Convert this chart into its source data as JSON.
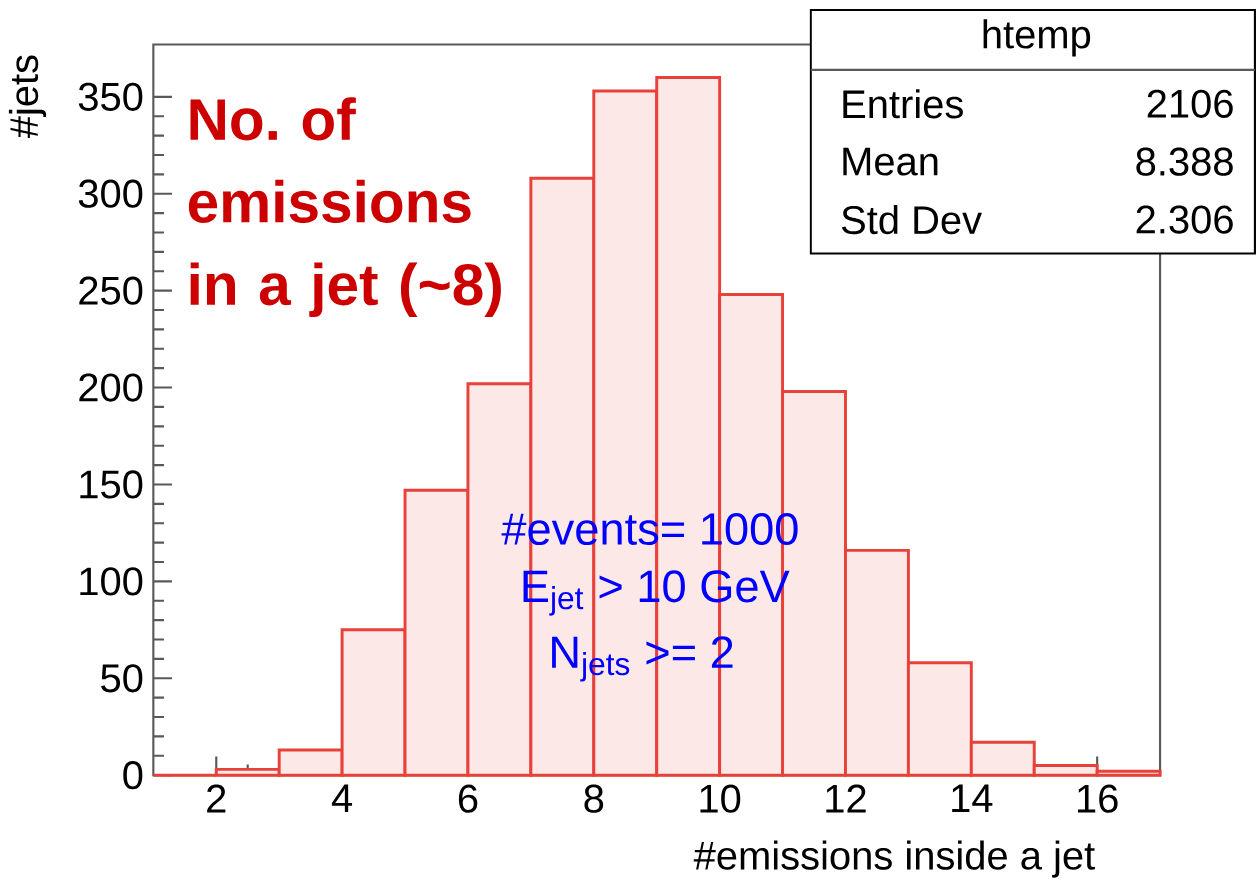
{
  "chart_data": {
    "type": "histogram",
    "xlabel": "#emissions inside a jet",
    "ylabel": "#jets",
    "bins": [
      1,
      2,
      3,
      4,
      5,
      6,
      7,
      8,
      9,
      10,
      11,
      12,
      13,
      14,
      15,
      16,
      17
    ],
    "values": [
      0,
      3,
      13,
      75,
      147,
      202,
      308,
      353,
      360,
      248,
      198,
      116,
      58,
      17,
      5,
      2
    ],
    "color": "#e8413a",
    "xlim": [
      1,
      17
    ],
    "ylim": [
      0,
      377
    ],
    "xticks": [
      2,
      4,
      6,
      8,
      10,
      12,
      14,
      16
    ],
    "yticks": [
      0,
      50,
      100,
      150,
      200,
      250,
      300,
      350
    ],
    "annotations": [
      "No. of emissions in a jet (~8)",
      "#events= 1000",
      "E$_{jet}$ > 10 GeV",
      "N$_{jets}$ >= 2",
      "htemp",
      "Entries",
      "2106",
      "Mean",
      "8.388",
      "Std Dev",
      "2.306"
    ]
  }
}
